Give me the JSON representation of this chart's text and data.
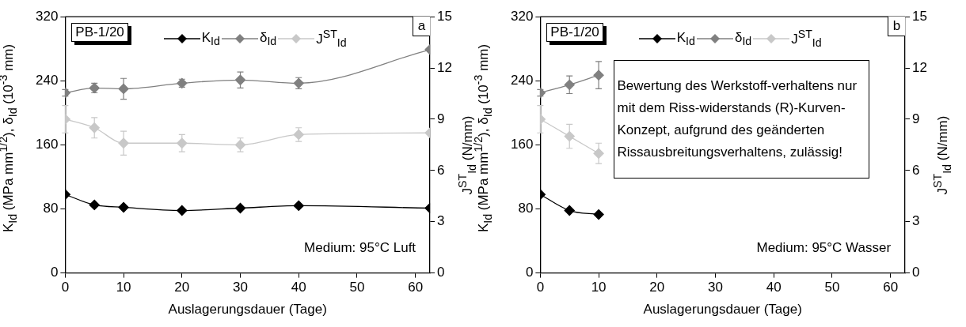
{
  "chart_data": [
    {
      "type": "line",
      "xlabel": "Auslagerungsdauer (Tage)",
      "ylabel": "K$_{Id}$ (MPa mm$^{1/2}$), δ$_{Id}$ (10$^{-3}$ mm)",
      "y2label": "J$^{ST}$$_{Id}$ (N/mm)",
      "x": [
        0,
        5,
        10,
        20,
        30,
        40,
        62.5
      ],
      "xlim": [
        0,
        62.5
      ],
      "xticks": [
        0,
        10,
        20,
        30,
        40,
        50,
        60
      ],
      "ylim": [
        0,
        320
      ],
      "yticks": [
        0,
        80,
        160,
        240,
        320
      ],
      "y2lim": [
        0,
        15
      ],
      "y2ticks": [
        0,
        3,
        6,
        9,
        12,
        15
      ],
      "marker": "diamond",
      "grid": false,
      "legend": "top",
      "series": [
        {
          "name": "K$_{Id}$",
          "color": "#000000",
          "values": [
            98,
            85,
            82,
            78,
            81,
            84,
            81
          ]
        },
        {
          "name": "δ$_{Id}$",
          "color": "#808080",
          "values": [
            225,
            231,
            230,
            237,
            241,
            237,
            279
          ],
          "errors": [
            4,
            6,
            13,
            5,
            10,
            7,
            null
          ]
        },
        {
          "name": "J$^{ST}$$_{Id}$",
          "color": "#c8c8c8",
          "axis": "y2",
          "values": [
            9,
            8.5,
            7.6,
            7.6,
            7.5,
            8.1,
            8.2
          ],
          "errors": [
            0.8,
            0.6,
            0.7,
            0.5,
            0.4,
            0.4,
            null
          ]
        }
      ],
      "annotations": [
        "PB-1/20",
        "a",
        "Medium: 95°C Luft"
      ]
    },
    {
      "type": "line",
      "xlabel": "Auslagerungsdauer (Tage)",
      "ylabel": "K$_{Id}$ (MPa mm$^{1/2}$), δ$_{Id}$ (10$^{-3}$ mm)",
      "y2label": "J$^{ST}$$_{Id}$ (N/mm)",
      "x": [
        0,
        5,
        10
      ],
      "xlim": [
        0,
        62.5
      ],
      "xticks": [
        0,
        10,
        20,
        30,
        40,
        50,
        60
      ],
      "ylim": [
        0,
        320
      ],
      "yticks": [
        0,
        80,
        160,
        240,
        320
      ],
      "y2lim": [
        0,
        15
      ],
      "y2ticks": [
        0,
        3,
        6,
        9,
        12,
        15
      ],
      "marker": "diamond",
      "grid": false,
      "legend": "top",
      "series": [
        {
          "name": "K$_{Id}$",
          "color": "#000000",
          "values": [
            98,
            78,
            73
          ]
        },
        {
          "name": "δ$_{Id}$",
          "color": "#808080",
          "values": [
            225,
            235,
            247
          ],
          "errors": [
            4,
            11,
            17
          ]
        },
        {
          "name": "J$^{ST}$$_{Id}$",
          "color": "#c8c8c8",
          "axis": "y2",
          "values": [
            9,
            8,
            7
          ],
          "errors": [
            0.8,
            0.7,
            0.6
          ]
        }
      ],
      "annotations": [
        "PB-1/20",
        "b",
        "Medium: 95°C Wasser",
        "Bewertung des Werkstoff-verhaltens nur mit dem Riss-widerstands (R)-Kurven-Konzept, aufgrund des geänderten Rissausbreitungsverhaltens, zulässig!"
      ]
    }
  ]
}
